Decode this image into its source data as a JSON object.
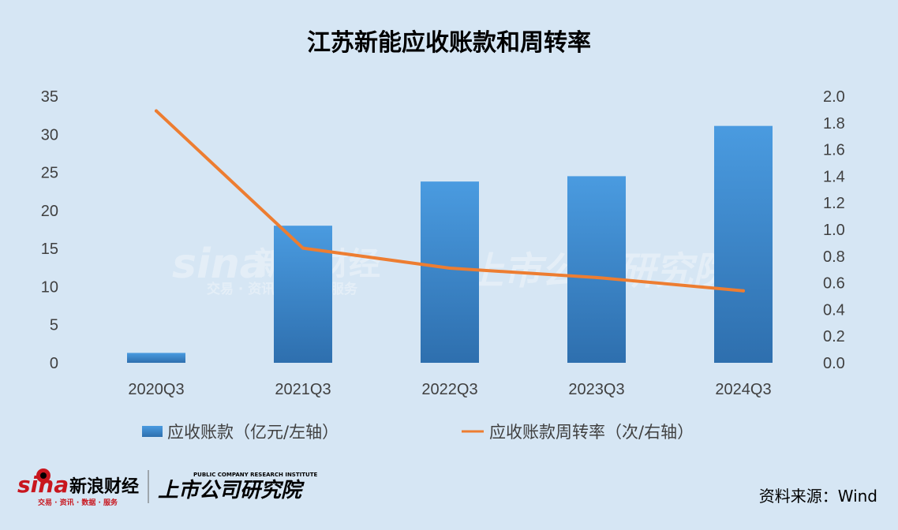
{
  "chart_data": {
    "type": "bar+line",
    "title": "江苏新能应收账款和周转率",
    "categories": [
      "2020Q3",
      "2021Q3",
      "2022Q3",
      "2023Q3",
      "2024Q3"
    ],
    "series": [
      {
        "name": "应收账款（亿元/左轴）",
        "type": "bar",
        "axis": "left",
        "values": [
          1.3,
          18.0,
          23.8,
          24.5,
          31.1
        ],
        "color": "#3a87cf"
      },
      {
        "name": "应收账款周转率（次/右轴）",
        "type": "line",
        "axis": "right",
        "values": [
          1.89,
          0.86,
          0.71,
          0.64,
          0.54
        ],
        "color": "#ed7d31"
      }
    ],
    "left_axis": {
      "min": 0,
      "max": 35,
      "step": 5,
      "ticks": [
        "0",
        "5",
        "10",
        "15",
        "20",
        "25",
        "30",
        "35"
      ]
    },
    "right_axis": {
      "min": 0,
      "max": 2.0,
      "step": 0.2,
      "ticks": [
        "0.0",
        "0.2",
        "0.4",
        "0.6",
        "0.8",
        "1.0",
        "1.2",
        "1.4",
        "1.6",
        "1.8",
        "2.0"
      ]
    },
    "legend_position": "bottom",
    "grid": false
  },
  "source_text": "资料来源：Wind",
  "logos": {
    "sina": "sina",
    "sina_cn": "新浪财经",
    "sina_sub": "交易 · 资讯 · 数据 · 服务",
    "institute": "上市公司研究院",
    "institute_en": "PUBLIC COMPANY RESEARCH INSTITUTE"
  },
  "colors": {
    "background": "#d6e6f4",
    "bar": "#3a87cf",
    "line": "#ed7d31",
    "logo_red": "#c8161e"
  }
}
